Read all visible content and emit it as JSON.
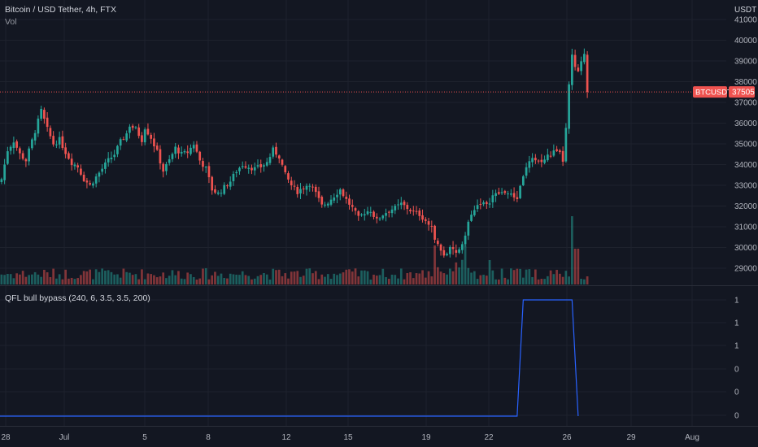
{
  "header": {
    "title": "Bitcoin / USD Tether, 4h, FTX",
    "volume_label": "Vol"
  },
  "price_axis": {
    "currency": "USDT",
    "ticks": [
      "41000",
      "40000",
      "39000",
      "38000",
      "37000",
      "36000",
      "35000",
      "34000",
      "33000",
      "32000",
      "31000",
      "30000",
      "29000"
    ]
  },
  "last_price": {
    "symbol": "BTCUSDT",
    "value": "37505"
  },
  "indicator": {
    "label": "QFL bull bypass (240, 6, 3.5, 3.5, 200)",
    "axis_ticks": [
      "1",
      "1",
      "1",
      "0",
      "0",
      "0"
    ]
  },
  "time_axis": {
    "labels": [
      "28",
      "Jul",
      "5",
      "8",
      "12",
      "15",
      "19",
      "22",
      "26",
      "29",
      "Aug"
    ]
  },
  "colors": {
    "background": "#131722",
    "up": "#26a69a",
    "down": "#ef5350",
    "indicator_line": "#2962ff",
    "grid": "#1e222d"
  },
  "chart_data": [
    {
      "type": "candlestick",
      "title": "Bitcoin / USD Tether, 4h, FTX",
      "ylim": [
        28000,
        41300
      ],
      "x_axis_labels": [
        "28",
        "Jul",
        "5",
        "8",
        "12",
        "15",
        "19",
        "22",
        "26",
        "29",
        "Aug"
      ],
      "close_path": [
        [
          0,
          33300
        ],
        [
          2,
          34700
        ],
        [
          4,
          35150
        ],
        [
          6,
          34500
        ],
        [
          8,
          34200
        ],
        [
          10,
          35150
        ],
        [
          12,
          36100
        ],
        [
          13,
          36600
        ],
        [
          15,
          35700
        ],
        [
          17,
          35000
        ],
        [
          19,
          35200
        ],
        [
          21,
          34600
        ],
        [
          23,
          34100
        ],
        [
          25,
          33900
        ],
        [
          27,
          33300
        ],
        [
          29,
          33000
        ],
        [
          31,
          33400
        ],
        [
          33,
          33800
        ],
        [
          35,
          34200
        ],
        [
          37,
          34500
        ],
        [
          39,
          35100
        ],
        [
          41,
          35500
        ],
        [
          42,
          35900
        ],
        [
          44,
          35700
        ],
        [
          46,
          35200
        ],
        [
          47,
          35800
        ],
        [
          49,
          35300
        ],
        [
          51,
          34600
        ],
        [
          53,
          33700
        ],
        [
          55,
          34200
        ],
        [
          57,
          34800
        ],
        [
          59,
          34500
        ],
        [
          61,
          34600
        ],
        [
          63,
          35000
        ],
        [
          65,
          34200
        ],
        [
          67,
          33800
        ],
        [
          69,
          32800
        ],
        [
          71,
          32600
        ],
        [
          73,
          32900
        ],
        [
          75,
          33200
        ],
        [
          77,
          33700
        ],
        [
          79,
          34000
        ],
        [
          81,
          33900
        ],
        [
          83,
          33800
        ],
        [
          85,
          33900
        ],
        [
          87,
          34100
        ],
        [
          89,
          34700
        ],
        [
          91,
          34400
        ],
        [
          93,
          33500
        ],
        [
          95,
          33000
        ],
        [
          97,
          32700
        ],
        [
          99,
          32900
        ],
        [
          101,
          33100
        ],
        [
          103,
          32600
        ],
        [
          105,
          32000
        ],
        [
          107,
          32200
        ],
        [
          109,
          32500
        ],
        [
          111,
          32800
        ],
        [
          113,
          32300
        ],
        [
          115,
          31900
        ],
        [
          117,
          31400
        ],
        [
          119,
          31700
        ],
        [
          121,
          31800
        ],
        [
          123,
          31300
        ],
        [
          125,
          31600
        ],
        [
          127,
          31800
        ],
        [
          129,
          31900
        ],
        [
          131,
          32100
        ],
        [
          133,
          31900
        ],
        [
          135,
          31700
        ],
        [
          137,
          31600
        ],
        [
          139,
          31300
        ],
        [
          141,
          30900
        ],
        [
          143,
          30100
        ],
        [
          145,
          29600
        ],
        [
          147,
          29900
        ],
        [
          149,
          29700
        ],
        [
          151,
          30200
        ],
        [
          153,
          31200
        ],
        [
          155,
          31900
        ],
        [
          157,
          32200
        ],
        [
          159,
          32000
        ],
        [
          161,
          32500
        ],
        [
          163,
          32600
        ],
        [
          165,
          32700
        ],
        [
          167,
          32500
        ],
        [
          169,
          32400
        ],
        [
          171,
          33500
        ],
        [
          173,
          34100
        ],
        [
          175,
          34300
        ],
        [
          177,
          34100
        ],
        [
          179,
          34400
        ],
        [
          181,
          34600
        ],
        [
          183,
          34500
        ],
        [
          184,
          34200
        ],
        [
          185,
          35700
        ],
        [
          186,
          37800
        ],
        [
          187,
          39200
        ],
        [
          188,
          38700
        ],
        [
          189,
          38400
        ],
        [
          190,
          38900
        ],
        [
          191,
          39400
        ],
        [
          192,
          37505
        ]
      ],
      "volume_pattern": "relative volume bars beneath price, spikes near Jul 19-22 and Jul 26",
      "last_value": 37505
    },
    {
      "type": "line",
      "title": "QFL bull bypass (240, 6, 3.5, 3.5, 200)",
      "x_index_points": [
        0,
        169,
        171,
        187,
        189
      ],
      "values": [
        0,
        0,
        1,
        1,
        0
      ]
    }
  ]
}
